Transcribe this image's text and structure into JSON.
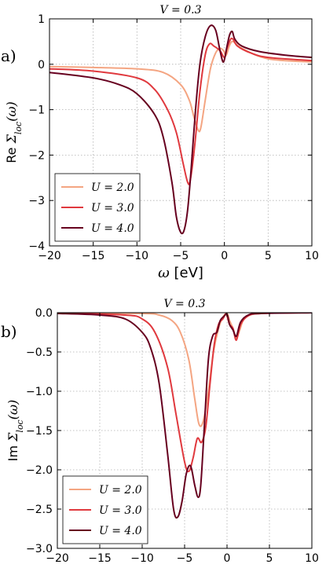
{
  "chart_data": [
    {
      "type": "line",
      "panel_label": "a)",
      "title": "V = 0.3",
      "xlabel": "ω [eV]",
      "ylabel": "Re Σ_loc(ω)",
      "ylabel_prefix": "Re ",
      "ylabel_math": "Σ",
      "ylabel_sub": "loc",
      "ylabel_suffix": "(ω)",
      "xlim": [
        -20,
        10
      ],
      "ylim": [
        -4,
        1
      ],
      "xticks": [
        "−20",
        "−15",
        "−10",
        "−5",
        "0",
        "5",
        "10"
      ],
      "yticks": [
        "−4",
        "−3",
        "−2",
        "−1",
        "0",
        "1"
      ],
      "grid": true,
      "legend_position": "lower-left",
      "series": [
        {
          "name": "U = 2.0",
          "color": "#f4a582",
          "x": [
            -20,
            -15,
            -10,
            -7,
            -5,
            -4,
            -3.5,
            -3,
            -2.7,
            -2.2,
            -1.6,
            -1,
            -0.5,
            -0.1,
            0.2,
            0.6,
            1,
            2,
            5,
            10
          ],
          "y": [
            -0.05,
            -0.07,
            -0.1,
            -0.18,
            -0.45,
            -0.8,
            -1.15,
            -1.45,
            -1.4,
            -0.8,
            -0.1,
            0.25,
            0.35,
            0.3,
            0.2,
            0.42,
            0.5,
            0.35,
            0.12,
            0.05
          ]
        },
        {
          "name": "U = 3.0",
          "color": "#e0393e",
          "x": [
            -20,
            -15,
            -10,
            -8,
            -6.5,
            -5.5,
            -4.7,
            -4.2,
            -3.9,
            -3.4,
            -2.8,
            -2.2,
            -1.7,
            -1.2,
            -0.5,
            0,
            0.3,
            0.7,
            1,
            1.5,
            3,
            5,
            10
          ],
          "y": [
            -0.1,
            -0.15,
            -0.3,
            -0.55,
            -1.0,
            -1.5,
            -2.2,
            -2.6,
            -2.55,
            -1.8,
            -0.6,
            0.2,
            0.45,
            0.4,
            0.3,
            0.15,
            0.35,
            0.55,
            0.55,
            0.4,
            0.25,
            0.15,
            0.08
          ]
        },
        {
          "name": "U = 4.0",
          "color": "#67001f",
          "x": [
            -20,
            -15,
            -12,
            -10,
            -8,
            -7,
            -6,
            -5.5,
            -5,
            -4.6,
            -4.2,
            -3.8,
            -3.3,
            -2.8,
            -2.2,
            -1.6,
            -1,
            -0.5,
            -0.1,
            0.3,
            0.6,
            0.9,
            1.2,
            2,
            4,
            7,
            10
          ],
          "y": [
            -0.18,
            -0.3,
            -0.45,
            -0.65,
            -1.1,
            -1.6,
            -2.6,
            -3.35,
            -3.7,
            -3.65,
            -3.2,
            -2.3,
            -1.0,
            0.0,
            0.6,
            0.85,
            0.75,
            0.3,
            0.05,
            0.4,
            0.65,
            0.72,
            0.55,
            0.4,
            0.28,
            0.2,
            0.15
          ]
        }
      ]
    },
    {
      "type": "line",
      "panel_label": "b)",
      "title": "V = 0.3",
      "xlabel": "ω [eV]",
      "ylabel": "Im Σ_loc(ω)",
      "ylabel_prefix": "Im ",
      "ylabel_math": "Σ",
      "ylabel_sub": "loc",
      "ylabel_suffix": "(ω)",
      "xlim": [
        -20,
        10
      ],
      "ylim": [
        -3,
        0
      ],
      "xticks": [
        "−20",
        "−15",
        "−10",
        "−5",
        "0",
        "5",
        "10"
      ],
      "yticks": [
        "−3.0",
        "−2.5",
        "−2.0",
        "−1.5",
        "−1.0",
        "−0.5",
        "0.0"
      ],
      "grid": true,
      "legend_position": "lower-left",
      "series": [
        {
          "name": "U = 2.0",
          "color": "#f4a582",
          "x": [
            -20,
            -10,
            -8,
            -6.5,
            -5.5,
            -4.5,
            -3.8,
            -3.3,
            -2.8,
            -2.2,
            -1.6,
            -1,
            -0.5,
            0,
            0.3,
            0.7,
            1.1,
            1.5,
            2,
            3,
            5,
            10
          ],
          "y": [
            -0.002,
            -0.01,
            -0.03,
            -0.1,
            -0.25,
            -0.6,
            -1.1,
            -1.42,
            -1.38,
            -1.0,
            -0.5,
            -0.2,
            -0.06,
            -0.01,
            -0.1,
            -0.2,
            -0.32,
            -0.22,
            -0.08,
            -0.02,
            -0.005,
            0
          ]
        },
        {
          "name": "U = 3.0",
          "color": "#e0393e",
          "x": [
            -20,
            -12,
            -10,
            -8.5,
            -7,
            -6,
            -5,
            -4.5,
            -4,
            -3.5,
            -3,
            -2.5,
            -2,
            -1.5,
            -1,
            -0.5,
            -0.1,
            0.3,
            0.7,
            1.1,
            1.6,
            2.5,
            4,
            10
          ],
          "y": [
            -0.005,
            -0.03,
            -0.08,
            -0.25,
            -0.7,
            -1.3,
            -1.9,
            -2.02,
            -1.85,
            -1.6,
            -1.65,
            -1.45,
            -0.9,
            -0.4,
            -0.15,
            -0.08,
            -0.02,
            -0.15,
            -0.2,
            -0.35,
            -0.15,
            -0.04,
            -0.01,
            0
          ]
        },
        {
          "name": "U = 4.0",
          "color": "#67001f",
          "x": [
            -20,
            -15,
            -12,
            -10,
            -9,
            -8,
            -7,
            -6.3,
            -5.8,
            -5.3,
            -4.8,
            -4.3,
            -3.8,
            -3.4,
            -3.1,
            -2.7,
            -2.2,
            -1.7,
            -1.2,
            -0.8,
            -0.4,
            0,
            0.3,
            0.7,
            1.1,
            1.6,
            2.5,
            4,
            10
          ],
          "y": [
            -0.01,
            -0.03,
            -0.08,
            -0.25,
            -0.45,
            -0.9,
            -1.8,
            -2.5,
            -2.6,
            -2.4,
            -2.05,
            -1.95,
            -2.2,
            -2.35,
            -2.2,
            -1.5,
            -0.6,
            -0.3,
            -0.25,
            -0.1,
            -0.05,
            -0.02,
            -0.15,
            -0.22,
            -0.3,
            -0.12,
            -0.03,
            -0.01,
            0
          ]
        }
      ]
    }
  ]
}
